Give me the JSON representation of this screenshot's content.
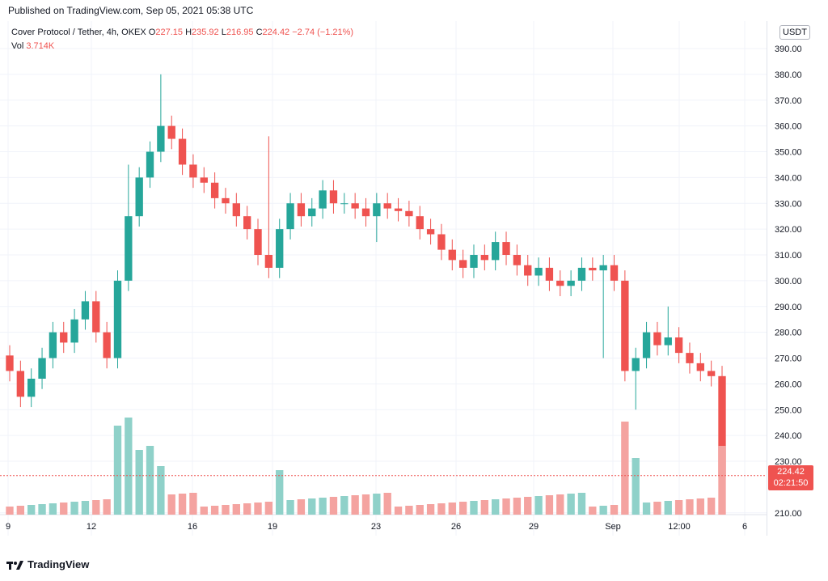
{
  "header": {
    "published": "Published on TradingView.com, Sep 05, 2021 05:38 UTC"
  },
  "legend": {
    "symbol": "Cover Protocol / Tether, 4h, OKEX",
    "o_label": "O",
    "o_value": "227.15",
    "h_label": "H",
    "h_value": "235.92",
    "l_label": "L",
    "l_value": "216.95",
    "c_label": "C",
    "c_value": "224.42",
    "change": "−2.74 (−1.21%)",
    "vol_label": "Vol",
    "vol_value": "3.714K"
  },
  "axis": {
    "currency": "USDT",
    "price_labels": [
      "390.00",
      "380.00",
      "370.00",
      "360.00",
      "350.00",
      "340.00",
      "330.00",
      "320.00",
      "310.00",
      "300.00",
      "290.00",
      "280.00",
      "270.00",
      "260.00",
      "250.00",
      "240.00",
      "230.00",
      "210.00"
    ],
    "time_labels": [
      "9",
      "12",
      "16",
      "19",
      "23",
      "26",
      "29",
      "Sep",
      "12:00",
      "6"
    ]
  },
  "last_price": {
    "value": "224.42",
    "countdown": "02:21:50"
  },
  "footer": {
    "brand": "TradingView"
  },
  "colors": {
    "up": "#26a69a",
    "down": "#ef5350",
    "up_vol": "#8fd1c9",
    "down_vol": "#f4a3a0",
    "grid": "#f0f3fa"
  },
  "chart_data": {
    "type": "candlestick",
    "title": "Cover Protocol / Tether, 4h, OKEX",
    "ylim": [
      200,
      395
    ],
    "x": [
      "Aug 09",
      "Aug 12",
      "Aug 16",
      "Aug 19",
      "Aug 23",
      "Aug 26",
      "Aug 29",
      "Sep 01",
      "Sep 01 12:00",
      "Sep 06"
    ],
    "close_approx": [
      265,
      255,
      262,
      270,
      280,
      276,
      285,
      292,
      280,
      270,
      300,
      325,
      340,
      350,
      360,
      355,
      345,
      340,
      338,
      332,
      330,
      325,
      320,
      310,
      305,
      320,
      330,
      325,
      328,
      335,
      330,
      330,
      328,
      325,
      330,
      328,
      327,
      325,
      320,
      318,
      312,
      308,
      305,
      310,
      308,
      315,
      310,
      306,
      302,
      305,
      300,
      298,
      300,
      305,
      304,
      306,
      300,
      265,
      270,
      280,
      275,
      278,
      272,
      268,
      265,
      263,
      224.42
    ],
    "last": {
      "open": 227.15,
      "high": 235.92,
      "low": 216.95,
      "close": 224.42,
      "change": -2.74,
      "change_pct": -1.21
    },
    "volume_last": "3.714K"
  }
}
